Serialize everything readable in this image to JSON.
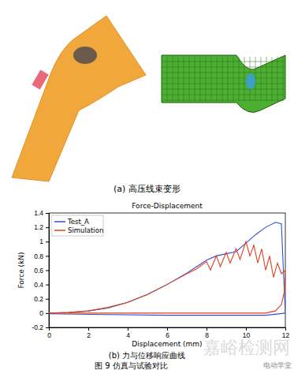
{
  "chart_data": {
    "type": "line",
    "title": "Force-Displacement",
    "x_label": "Displacement (mm)",
    "y_label": "Force (kN)",
    "xlim": [
      0,
      12
    ],
    "xticks": [
      0,
      2,
      4,
      6,
      8,
      10,
      12
    ],
    "ylim": [
      -0.2,
      1.4
    ],
    "yticks": [
      -0.2,
      0,
      0.2,
      0.4,
      0.6,
      0.8,
      1,
      1.2,
      1.4
    ],
    "grid": false,
    "legend": "upper left",
    "series": [
      {
        "name": "Test_A",
        "color": "#2f4fd8",
        "x": [
          0,
          1,
          2,
          3,
          4,
          5,
          6,
          7,
          7.5,
          8,
          8.5,
          9,
          9.5,
          10,
          10.5,
          11,
          11.5,
          11.8,
          11.9,
          12,
          11,
          9,
          6,
          3,
          0
        ],
        "values": [
          0,
          0.01,
          0.03,
          0.07,
          0.15,
          0.26,
          0.4,
          0.56,
          0.65,
          0.74,
          0.8,
          0.83,
          0.86,
          0.98,
          1.1,
          1.2,
          1.27,
          1.25,
          0.6,
          0,
          -0.03,
          -0.03,
          -0.03,
          -0.02,
          -0.01
        ]
      },
      {
        "name": "Simulation",
        "color": "#e0401f",
        "x": [
          0,
          1,
          2,
          3,
          4,
          5,
          6,
          7,
          7.5,
          8,
          8.2,
          8.5,
          8.7,
          9,
          9.2,
          9.5,
          9.7,
          10,
          10.2,
          10.4,
          10.6,
          10.8,
          11,
          11.2,
          11.4,
          11.6,
          11.8,
          12,
          11.95,
          11.8,
          11.5,
          11,
          10,
          6,
          0
        ],
        "values": [
          0,
          0.01,
          0.03,
          0.08,
          0.15,
          0.26,
          0.4,
          0.55,
          0.62,
          0.72,
          0.6,
          0.8,
          0.65,
          0.85,
          0.7,
          0.9,
          0.75,
          1.0,
          0.8,
          0.95,
          0.7,
          0.9,
          0.6,
          0.8,
          0.5,
          0.7,
          0.55,
          0.6,
          0.3,
          0.12,
          0.03,
          0,
          0,
          0,
          0
        ]
      }
    ]
  },
  "figure": {
    "caption_a": "(a) 高压线束变形",
    "caption_b": "(b) 力与位移响应曲线",
    "caption": "图 9  仿真与试验对比",
    "watermarks": [
      "嘉峪检测网",
      "电动学堂"
    ]
  }
}
